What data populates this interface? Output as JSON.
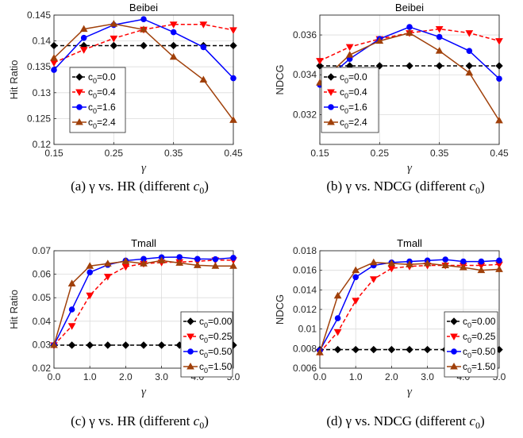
{
  "chart_data": [
    {
      "type": "line",
      "title": "Beibei",
      "xlabel": "γ",
      "ylabel": "Hit Ratio",
      "xlim": [
        0.15,
        0.45
      ],
      "ylim": [
        0.12,
        0.145
      ],
      "xticks": [
        "0.15",
        "0.25",
        "0.35",
        "0.45"
      ],
      "yticks": [
        "0.12",
        "0.125",
        "0.13",
        "0.135",
        "0.14",
        "0.145"
      ],
      "x": [
        0.15,
        0.2,
        0.25,
        0.3,
        0.35,
        0.4,
        0.45
      ],
      "grid": true,
      "legend_position": "bottom-left",
      "series": [
        {
          "name": "c0=0.0",
          "label_main": "c",
          "label_sub": "0",
          "label_tail": "=0.0",
          "color": "#000000",
          "marker": "diamond",
          "dash": true,
          "values": [
            0.1391,
            0.1391,
            0.1391,
            0.1391,
            0.1391,
            0.1391,
            0.1391
          ]
        },
        {
          "name": "c0=0.4",
          "label_main": "c",
          "label_sub": "0",
          "label_tail": "=0.4",
          "color": "#ff0000",
          "marker": "triangle-down",
          "dash": true,
          "values": [
            0.1358,
            0.1383,
            0.1405,
            0.1422,
            0.1432,
            0.1432,
            0.1421
          ]
        },
        {
          "name": "c0=1.6",
          "label_main": "c",
          "label_sub": "0",
          "label_tail": "=1.6",
          "color": "#0000ff",
          "marker": "circle",
          "dash": false,
          "values": [
            0.1344,
            0.1406,
            0.1431,
            0.1442,
            0.1417,
            0.1388,
            0.1328
          ]
        },
        {
          "name": "c0=2.4",
          "label_main": "c",
          "label_sub": "0",
          "label_tail": "=2.4",
          "color": "#a0400a",
          "marker": "triangle-up",
          "dash": false,
          "values": [
            0.1367,
            0.1423,
            0.1433,
            0.1422,
            0.1369,
            0.1325,
            0.1247
          ]
        }
      ],
      "caption": {
        "prefix": "(a)  γ vs. HR  (different ",
        "var": "c",
        "sub": "0",
        "suffix": ")"
      }
    },
    {
      "type": "line",
      "title": "Beibei",
      "xlabel": "γ",
      "ylabel": "NDCG",
      "xlim": [
        0.15,
        0.45
      ],
      "ylim": [
        0.0305,
        0.037
      ],
      "xticks": [
        "0.15",
        "0.25",
        "0.35",
        "0.45"
      ],
      "yticks": [
        "0.032",
        "0.034",
        "0.036"
      ],
      "x": [
        0.15,
        0.2,
        0.25,
        0.3,
        0.35,
        0.4,
        0.45
      ],
      "grid": true,
      "legend_position": "bottom-left",
      "series": [
        {
          "name": "c0=0.0",
          "label_main": "c",
          "label_sub": "0",
          "label_tail": "=0.0",
          "color": "#000000",
          "marker": "diamond",
          "dash": true,
          "values": [
            0.03445,
            0.03445,
            0.03445,
            0.03445,
            0.03445,
            0.03445,
            0.03445
          ]
        },
        {
          "name": "c0=0.4",
          "label_main": "c",
          "label_sub": "0",
          "label_tail": "=0.4",
          "color": "#ff0000",
          "marker": "triangle-down",
          "dash": true,
          "values": [
            0.0347,
            0.0354,
            0.0358,
            0.0361,
            0.0363,
            0.0361,
            0.0357
          ]
        },
        {
          "name": "c0=1.6",
          "label_main": "c",
          "label_sub": "0",
          "label_tail": "=1.6",
          "color": "#0000ff",
          "marker": "circle",
          "dash": false,
          "values": [
            0.0335,
            0.0348,
            0.0358,
            0.0364,
            0.0359,
            0.0352,
            0.0338
          ]
        },
        {
          "name": "c0=2.4",
          "label_main": "c",
          "label_sub": "0",
          "label_tail": "=2.4",
          "color": "#a0400a",
          "marker": "triangle-up",
          "dash": false,
          "values": [
            0.0336,
            0.035,
            0.0357,
            0.0361,
            0.0352,
            0.0341,
            0.0317
          ]
        }
      ],
      "caption": {
        "prefix": "(b)  γ vs. NDCG (different ",
        "var": "c",
        "sub": "0",
        "suffix": ")"
      }
    },
    {
      "type": "line",
      "title": "Tmall",
      "xlabel": "γ",
      "ylabel": "Hit Ratio",
      "xlim": [
        0,
        5
      ],
      "ylim": [
        0.02,
        0.07
      ],
      "xticks": [
        "0.0",
        "1.0",
        "2.0",
        "3.0",
        "4.0",
        "5.0"
      ],
      "yticks": [
        "0.02",
        "0.03",
        "0.04",
        "0.05",
        "0.06",
        "0.07"
      ],
      "x": [
        0,
        0.5,
        1.0,
        1.5,
        2.0,
        2.5,
        3.0,
        3.5,
        4.0,
        4.5,
        5.0
      ],
      "grid": true,
      "legend_position": "bottom-right",
      "series": [
        {
          "name": "c0=0.00",
          "label_main": "c",
          "label_sub": "0",
          "label_tail": "=0.00",
          "color": "#000000",
          "marker": "diamond",
          "dash": true,
          "values": [
            0.0298,
            0.0298,
            0.0298,
            0.0298,
            0.0298,
            0.0298,
            0.0298,
            0.0298,
            0.0298,
            0.0298,
            0.0298
          ]
        },
        {
          "name": "c0=0.25",
          "label_main": "c",
          "label_sub": "0",
          "label_tail": "=0.25",
          "color": "#ff0000",
          "marker": "triangle-down",
          "dash": true,
          "values": [
            0.0298,
            0.038,
            0.051,
            0.059,
            0.0632,
            0.0645,
            0.065,
            0.0652,
            0.0655,
            0.066,
            0.066
          ]
        },
        {
          "name": "c0=0.50",
          "label_main": "c",
          "label_sub": "0",
          "label_tail": "=0.50",
          "color": "#0000ff",
          "marker": "circle",
          "dash": false,
          "values": [
            0.0298,
            0.045,
            0.0608,
            0.064,
            0.0658,
            0.0665,
            0.0672,
            0.0673,
            0.0665,
            0.0664,
            0.067
          ]
        },
        {
          "name": "c0=1.50",
          "label_main": "c",
          "label_sub": "0",
          "label_tail": "=1.50",
          "color": "#a0400a",
          "marker": "triangle-up",
          "dash": false,
          "values": [
            0.0298,
            0.056,
            0.0635,
            0.0645,
            0.0655,
            0.0645,
            0.0658,
            0.0648,
            0.0638,
            0.0635,
            0.0635
          ]
        }
      ],
      "caption": {
        "prefix": "(c)  γ vs. HR (different ",
        "var": "c",
        "sub": "0",
        "suffix": ")"
      }
    },
    {
      "type": "line",
      "title": "Tmall",
      "xlabel": "γ",
      "ylabel": "NDCG",
      "xlim": [
        0,
        5
      ],
      "ylim": [
        0.006,
        0.018
      ],
      "xticks": [
        "0.0",
        "1.0",
        "2.0",
        "3.0",
        "4.0",
        "5.0"
      ],
      "yticks": [
        "0.006",
        "0.008",
        "0.01",
        "0.012",
        "0.014",
        "0.016",
        "0.018"
      ],
      "x": [
        0,
        0.5,
        1.0,
        1.5,
        2.0,
        2.5,
        3.0,
        3.5,
        4.0,
        4.5,
        5.0
      ],
      "grid": true,
      "legend_position": "bottom-right",
      "series": [
        {
          "name": "c0=0.00",
          "label_main": "c",
          "label_sub": "0",
          "label_tail": "=0.00",
          "color": "#000000",
          "marker": "diamond",
          "dash": true,
          "values": [
            0.0079,
            0.0079,
            0.0079,
            0.0079,
            0.0079,
            0.0079,
            0.0079,
            0.0079,
            0.0079,
            0.0079,
            0.0079
          ]
        },
        {
          "name": "c0=0.25",
          "label_main": "c",
          "label_sub": "0",
          "label_tail": "=0.25",
          "color": "#ff0000",
          "marker": "triangle-down",
          "dash": true,
          "values": [
            0.0076,
            0.0097,
            0.0129,
            0.0151,
            0.0162,
            0.0164,
            0.0165,
            0.0165,
            0.0165,
            0.0165,
            0.0166
          ]
        },
        {
          "name": "c0=0.50",
          "label_main": "c",
          "label_sub": "0",
          "label_tail": "=0.50",
          "color": "#0000ff",
          "marker": "circle",
          "dash": false,
          "values": [
            0.0078,
            0.0111,
            0.0153,
            0.0165,
            0.0168,
            0.0169,
            0.017,
            0.0171,
            0.0169,
            0.0169,
            0.017
          ]
        },
        {
          "name": "c0=1.50",
          "label_main": "c",
          "label_sub": "0",
          "label_tail": "=1.50",
          "color": "#a0400a",
          "marker": "triangle-up",
          "dash": false,
          "values": [
            0.0076,
            0.0134,
            0.016,
            0.0168,
            0.0167,
            0.0166,
            0.0167,
            0.0165,
            0.0163,
            0.016,
            0.0161
          ]
        }
      ],
      "caption": {
        "prefix": "(d)  γ vs. NDCG (different ",
        "var": "c",
        "sub": "0",
        "suffix": ")"
      }
    }
  ]
}
